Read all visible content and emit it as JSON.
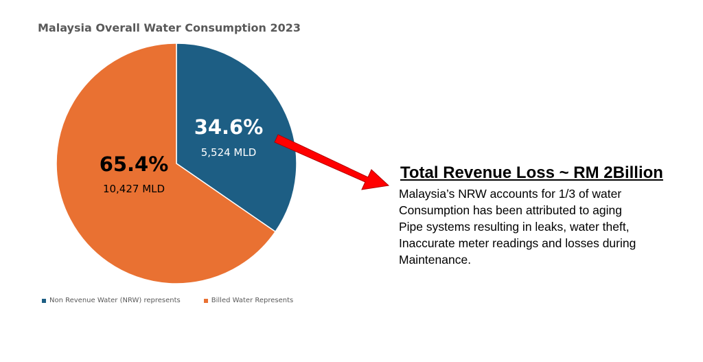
{
  "chart_data": {
    "type": "pie",
    "title": "Malaysia Overall Water Consumption 2023",
    "slices": [
      {
        "label": "Non Revenue Water (NRW) represents",
        "percent": 34.6,
        "percent_label": "34.6%",
        "value_label": "5,524 MLD",
        "color": "#1d5e84"
      },
      {
        "label": "Billed Water Represents",
        "percent": 65.4,
        "percent_label": "65.4%",
        "value_label": "10,427 MLD",
        "color": "#e97132"
      }
    ],
    "legend_position": "bottom-left"
  },
  "callout": {
    "heading": "Total Revenue Loss ~ RM 2Billion",
    "body": "Malaysia’s NRW accounts for 1/3 of water\nConsumption has been attributed to aging\nPipe systems resulting in leaks, water theft,\nInaccurate meter readings and losses during\nMaintenance.",
    "arrow_color": "#ff0000"
  }
}
